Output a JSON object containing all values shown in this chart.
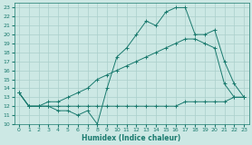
{
  "xlabel": "Humidex (Indice chaleur)",
  "xlim": [
    -0.5,
    23.5
  ],
  "ylim": [
    10,
    23.5
  ],
  "xticks": [
    0,
    1,
    2,
    3,
    4,
    5,
    6,
    7,
    8,
    9,
    10,
    11,
    12,
    13,
    14,
    15,
    16,
    17,
    18,
    19,
    20,
    21,
    22,
    23
  ],
  "yticks": [
    10,
    11,
    12,
    13,
    14,
    15,
    16,
    17,
    18,
    19,
    20,
    21,
    22,
    23
  ],
  "background_color": "#cce8e4",
  "grid_color": "#aacfcb",
  "line_color": "#1a7a6e",
  "lines": [
    {
      "x": [
        0,
        1,
        2,
        3,
        4,
        5,
        6,
        7,
        8,
        9,
        10,
        11,
        12,
        13,
        14,
        15,
        16,
        17,
        18,
        19,
        20,
        21,
        22,
        23
      ],
      "y": [
        13.5,
        12,
        12,
        12,
        11.5,
        11.5,
        11,
        11.5,
        10,
        14,
        17.5,
        18.5,
        20,
        21.5,
        21,
        22.5,
        23,
        23,
        20,
        20,
        20.5,
        17,
        14.5,
        13
      ]
    },
    {
      "x": [
        0,
        1,
        2,
        3,
        4,
        5,
        6,
        7,
        8,
        9,
        10,
        11,
        12,
        13,
        14,
        15,
        16,
        17,
        18,
        19,
        20,
        21,
        22,
        23
      ],
      "y": [
        13.5,
        12,
        12,
        12.5,
        12.5,
        13,
        13.5,
        14,
        15,
        15.5,
        16,
        16.5,
        17,
        17.5,
        18,
        18.5,
        19,
        19.5,
        19.5,
        19,
        18.5,
        14.5,
        13,
        13
      ]
    },
    {
      "x": [
        0,
        1,
        2,
        3,
        4,
        5,
        6,
        7,
        8,
        9,
        10,
        11,
        12,
        13,
        14,
        15,
        16,
        17,
        18,
        19,
        20,
        21,
        22,
        23
      ],
      "y": [
        13.5,
        12,
        12,
        12,
        12,
        12,
        12,
        12,
        12,
        12,
        12,
        12,
        12,
        12,
        12,
        12,
        12,
        12.5,
        12.5,
        12.5,
        12.5,
        12.5,
        13,
        13
      ]
    }
  ]
}
